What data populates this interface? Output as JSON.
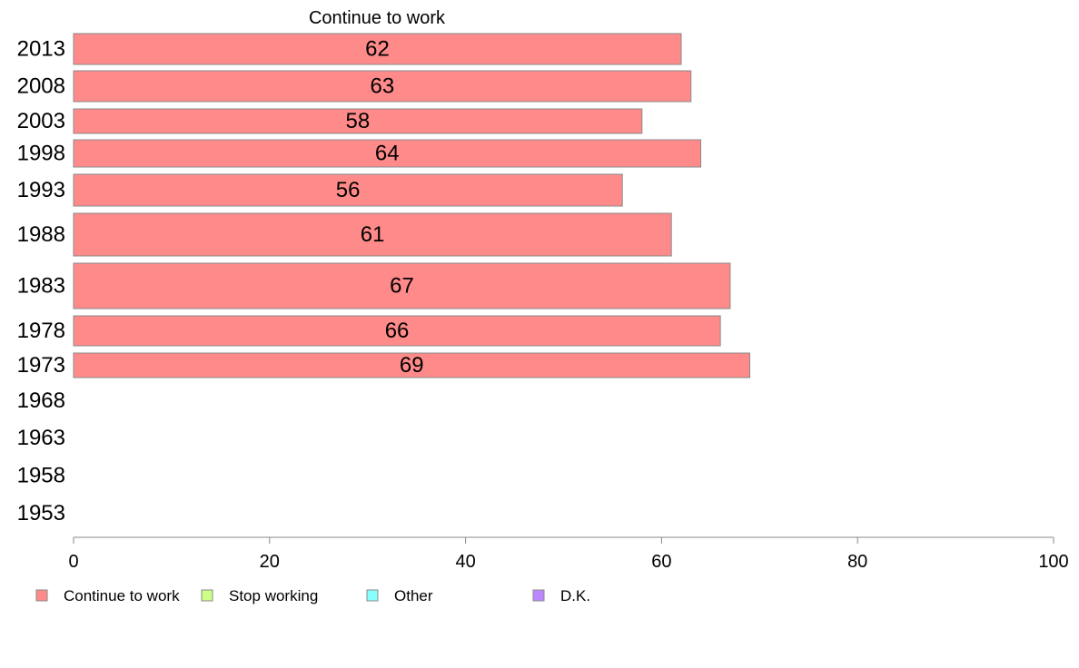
{
  "chart_data": {
    "type": "bar",
    "orientation": "horizontal",
    "title": "Continue to work",
    "categories": [
      "2013",
      "2008",
      "2003",
      "1998",
      "1993",
      "1988",
      "1983",
      "1978",
      "1973",
      "1968",
      "1963",
      "1958",
      "1953"
    ],
    "series": [
      {
        "name": "Continue to work",
        "color": "#ff8a8a",
        "values": [
          62,
          63,
          58,
          64,
          56,
          61,
          67,
          66,
          69,
          null,
          null,
          null,
          null
        ]
      }
    ],
    "xlim": [
      0,
      100
    ],
    "xticks": [
      0,
      20,
      40,
      60,
      80,
      100
    ],
    "grid": false,
    "legend": {
      "placement": "bottom",
      "entries": [
        {
          "label": "Continue to work",
          "color": "#ff8a8a"
        },
        {
          "label": "Stop working",
          "color": "#ccff88"
        },
        {
          "label": "Other",
          "color": "#88ffff"
        },
        {
          "label": "D.K.",
          "color": "#bb88ff"
        }
      ]
    }
  }
}
